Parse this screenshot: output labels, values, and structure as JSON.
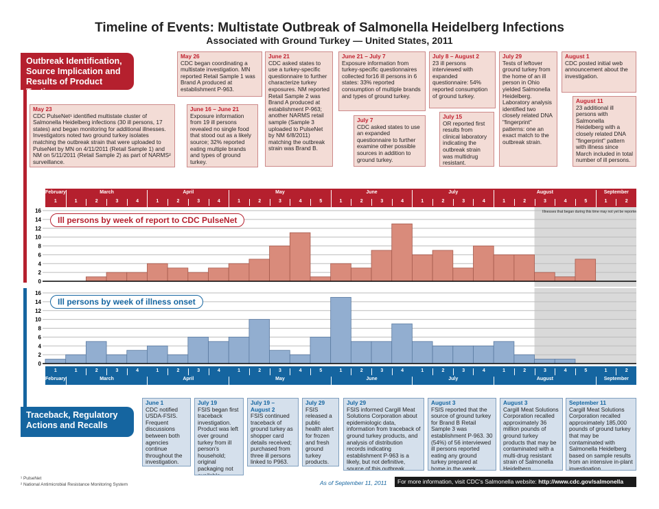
{
  "title": {
    "line1": "Timeline of Events: Multistate Outbreak of Salmonella Heidelberg Infections",
    "line2": "Associated with Ground Turkey — United States, 2011"
  },
  "sections": {
    "top": "Outbreak Identification, Source Implication and Results of Product Testing",
    "bottom": "Traceback, Regulatory Actions and Recalls"
  },
  "top_events": [
    {
      "date": "May 23",
      "text": "CDC PulseNet¹ identified multistate cluster of Salmonella Heidelberg infections (30 ill persons, 17 states) and began monitoring for additional illnesses. Investigators noted two ground turkey isolates matching the outbreak strain that were uploaded to PulseNet by MN on 4/11/2011 (Retail Sample 1) and NM on 5/11/2011 (Retail Sample 2) as part of NARMS² surveillance."
    },
    {
      "date": "May 26",
      "text": "CDC began coordinating a multistate investigation. MN reported Retail Sample 1 was Brand A produced at establishment P-963."
    },
    {
      "date": "June 16 – June 21",
      "text": "Exposure information from 19 ill persons revealed no single food that stood out as a likely source; 32% reported eating multiple brands and types of ground turkey."
    },
    {
      "date": "June 21",
      "text": "CDC asked states to use a turkey-specific questionnaire to further characterize turkey exposures. NM reported Retail Sample 2 was Brand A produced at establishment P-963; another NARMS retail sample (Sample 3 uploaded to PulseNet by NM 6/8/2011) matching the outbreak strain was Brand B."
    },
    {
      "date": "June 21 – July 7",
      "text": "Exposure information from turkey-specific questionnaires collected for16 ill persons in 6 states: 33% reported consumption of multiple brands and types of ground turkey."
    },
    {
      "date": "July 7",
      "text": "CDC asked states to use an expanded questionnaire to further examine other possible sources in addition to ground turkey."
    },
    {
      "date": "July 8 – August 2",
      "text": "23 ill persons interviewed with expanded questionnaire: 54% reported consumption of ground turkey."
    },
    {
      "date": "July 15",
      "text": "OR reported first results from clinical laboratory indicating the outbreak strain was multidrug resistant."
    },
    {
      "date": "July 29",
      "text": "Tests of leftover ground turkey from the home of an ill person in Ohio yielded Salmonella Heidelberg. Laboratory analysis identified two closely related DNA \"fingerprint\" patterns: one an exact match to the outbreak strain."
    },
    {
      "date": "August 1",
      "text": "CDC posted initial web announcement about the investigation."
    },
    {
      "date": "August 11",
      "text": "23 additional ill persons with Salmonella Heidelberg with a closely related DNA \"fingerprint\" pattern with illness since March included in total number of ill persons."
    }
  ],
  "bottom_events": [
    {
      "date": "June 1",
      "text": "CDC notified USDA-FSIS. Frequent discussions between both agencies continue throughout the investigation."
    },
    {
      "date": "July 19",
      "text": "FSIS began first traceback investigation. Product was left over ground turkey from ill person's household; original packaging not available."
    },
    {
      "date": "July 19 – August 2",
      "text": "FSIS continued traceback of ground turkey as shopper card details received; purchased from three ill persons linked to P963."
    },
    {
      "date": "July 29",
      "text": "FSIS released a public health alert for frozen and fresh ground turkey products."
    },
    {
      "date": "July 29",
      "text": "FSIS informed Cargill Meat Solutions Corporation about epidemiologic data, information from traceback of ground turkey products, and analysis of distribution records indicating establishment P-963 is a likely, but not definitive, source of this outbreak."
    },
    {
      "date": "August 3",
      "text": "FSIS reported that the source of ground turkey for Brand B Retail Sample 3 was establishment P-963. 30 (54%) of 56 interviewed ill persons reported eating any ground turkey prepared at home in the week before illness."
    },
    {
      "date": "August 3",
      "text": "Cargill Meat Solutions Corporation recalled approximately 36 million pounds of ground turkey products that may be contaminated with a multi-drug resistant strain of Salmonella Heidelberg."
    },
    {
      "date": "September 11",
      "text": "Cargill Meat Solutions Corporation recalled approximately 185,000 pounds of ground turkey that may be contaminated with Salmonella Heidelberg based on sample results from an intensive in-plant investigation."
    }
  ],
  "months": [
    {
      "name": "February",
      "weeks": 1
    },
    {
      "name": "March",
      "weeks": 4
    },
    {
      "name": "April",
      "weeks": 4
    },
    {
      "name": "May",
      "weeks": 5
    },
    {
      "name": "June",
      "weeks": 4
    },
    {
      "name": "July",
      "weeks": 4
    },
    {
      "name": "August",
      "weeks": 5
    },
    {
      "name": "September",
      "weeks": 2
    }
  ],
  "shade_note": "Illnesses that began during this time may not yet be reported",
  "colors": {
    "red": "#b5202e",
    "blue": "#1565a0",
    "red_bar": "#d98b7b",
    "blue_bar": "#92aed0",
    "shade": "#d9d9d9"
  },
  "chart_data": [
    {
      "type": "bar",
      "title": "Ill persons by week of report to CDC PulseNet",
      "ylim": [
        0,
        16
      ],
      "yticks": [
        0,
        2,
        4,
        6,
        8,
        10,
        12,
        14,
        16
      ],
      "grid": true,
      "categories": [
        "Feb 1",
        "Mar 1",
        "Mar 2",
        "Mar 3",
        "Mar 4",
        "Apr 1",
        "Apr 2",
        "Apr 3",
        "Apr 4",
        "May 1",
        "May 2",
        "May 3",
        "May 4",
        "May 5",
        "Jun 1",
        "Jun 2",
        "Jun 3",
        "Jun 4",
        "Jul 1",
        "Jul 2",
        "Jul 3",
        "Jul 4",
        "Aug 1",
        "Aug 2",
        "Aug 3",
        "Aug 4",
        "Aug 5",
        "Sep 1",
        "Sep 2"
      ],
      "values": [
        0,
        0,
        1,
        2,
        2,
        4,
        3,
        2,
        3,
        4,
        5,
        8,
        11,
        1,
        4,
        3,
        7,
        13,
        6,
        7,
        3,
        8,
        6,
        6,
        2,
        1,
        5,
        0,
        0
      ]
    },
    {
      "type": "bar",
      "title": "Ill persons by week of illness onset",
      "ylim": [
        0,
        16
      ],
      "yticks": [
        0,
        2,
        4,
        6,
        8,
        10,
        12,
        14,
        16
      ],
      "grid": true,
      "categories": [
        "Feb 1",
        "Mar 1",
        "Mar 2",
        "Mar 3",
        "Mar 4",
        "Apr 1",
        "Apr 2",
        "Apr 3",
        "Apr 4",
        "May 1",
        "May 2",
        "May 3",
        "May 4",
        "May 5",
        "Jun 1",
        "Jun 2",
        "Jun 3",
        "Jun 4",
        "Jul 1",
        "Jul 2",
        "Jul 3",
        "Jul 4",
        "Aug 1",
        "Aug 2",
        "Aug 3",
        "Aug 4",
        "Aug 5",
        "Sep 1",
        "Sep 2"
      ],
      "values": [
        1,
        2,
        5,
        2,
        3,
        4,
        2,
        6,
        5,
        6,
        10,
        3,
        2,
        6,
        15,
        5,
        5,
        9,
        5,
        4,
        4,
        4,
        5,
        2,
        1,
        1,
        0,
        0,
        0
      ]
    }
  ],
  "footnotes": [
    "¹ PulseNet",
    "² National Antimicrobial Resistance Monitoring System"
  ],
  "as_of": "As of September 11, 2011",
  "more_info": {
    "text": "For more information, visit CDC's Salmonella website: ",
    "url": "http://www.cdc.gov/salmonella"
  }
}
